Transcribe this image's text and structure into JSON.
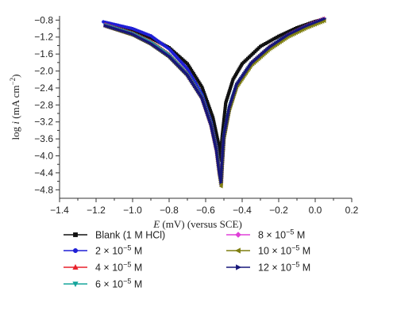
{
  "chart_data": {
    "type": "line",
    "title": "",
    "xlabel": {
      "prefix": "E",
      "rest": " (mV) (versus SCE)"
    },
    "ylabel": {
      "prefix": "log ",
      "italic": "i",
      "mid": " (mA cm",
      "sup": "−2",
      "suffix": ")"
    },
    "xlim": [
      -1.4,
      0.2
    ],
    "ylim": [
      -5.0,
      -0.7
    ],
    "xticks": [
      -1.4,
      -1.2,
      -1.0,
      -0.8,
      -0.6,
      -0.4,
      -0.2,
      0.0,
      0.2
    ],
    "xtick_labels": [
      "−1.4",
      "−1.2",
      "−1.0",
      "−0.8",
      "−0.6",
      "−0.4",
      "−0.2",
      "0.0",
      "0.2"
    ],
    "yticks": [
      -0.8,
      -1.2,
      -1.6,
      -2.0,
      -2.4,
      -2.8,
      -3.2,
      -3.6,
      -4.0,
      -4.4,
      -4.8
    ],
    "ytick_labels": [
      "−0.8",
      "−1.2",
      "−1.6",
      "−2.0",
      "−2.4",
      "−2.8",
      "−3.2",
      "−3.6",
      "−4.0",
      "−4.4",
      "−4.8"
    ],
    "grid": false,
    "legend_position": "bottom",
    "series": [
      {
        "name": "Blank (1 M HCl)",
        "label": {
          "main": "Blank (1 M HCl)"
        },
        "color": "#111111",
        "marker": "square",
        "x": [
          -1.15,
          -1.0,
          -0.9,
          -0.8,
          -0.7,
          -0.62,
          -0.56,
          -0.53,
          -0.52,
          -0.51,
          -0.49,
          -0.45,
          -0.4,
          -0.3,
          -0.2,
          -0.1,
          0.0,
          0.05
        ],
        "y": [
          -0.93,
          -1.06,
          -1.22,
          -1.45,
          -1.83,
          -2.38,
          -3.1,
          -3.7,
          -4.1,
          -3.55,
          -2.75,
          -2.2,
          -1.83,
          -1.42,
          -1.18,
          -0.98,
          -0.83,
          -0.78
        ]
      },
      {
        "name": "2 × 10−5 M",
        "label": {
          "main": "2 × 10",
          "sup": "−5",
          "unit": " M"
        },
        "color": "#1f1fd6",
        "marker": "circle",
        "x": [
          -1.16,
          -1.0,
          -0.9,
          -0.8,
          -0.7,
          -0.62,
          -0.57,
          -0.54,
          -0.525,
          -0.515,
          -0.51,
          -0.5,
          -0.47,
          -0.43,
          -0.35,
          -0.25,
          -0.15,
          -0.05,
          0.05
        ],
        "y": [
          -0.84,
          -1.0,
          -1.17,
          -1.48,
          -1.95,
          -2.55,
          -3.2,
          -3.8,
          -4.4,
          -4.7,
          -4.3,
          -3.6,
          -2.9,
          -2.35,
          -1.82,
          -1.45,
          -1.17,
          -0.96,
          -0.78
        ]
      },
      {
        "name": "4 × 10−5 M",
        "label": {
          "main": "4 × 10",
          "sup": "−5",
          "unit": " M"
        },
        "color": "#e8202a",
        "marker": "triangle-up",
        "x": [
          -1.15,
          -1.0,
          -0.9,
          -0.8,
          -0.7,
          -0.62,
          -0.57,
          -0.54,
          -0.525,
          -0.515,
          -0.51,
          -0.5,
          -0.47,
          -0.43,
          -0.35,
          -0.25,
          -0.15,
          -0.05,
          0.05
        ],
        "y": [
          -0.9,
          -1.1,
          -1.3,
          -1.6,
          -2.05,
          -2.6,
          -3.25,
          -3.85,
          -4.35,
          -4.6,
          -4.2,
          -3.55,
          -2.85,
          -2.3,
          -1.8,
          -1.42,
          -1.14,
          -0.93,
          -0.76
        ]
      },
      {
        "name": "6 × 10−5 M",
        "label": {
          "main": "6 × 10",
          "sup": "−5",
          "unit": " M"
        },
        "color": "#16a59c",
        "marker": "triangle-down",
        "x": [
          -1.15,
          -1.0,
          -0.9,
          -0.8,
          -0.7,
          -0.62,
          -0.57,
          -0.54,
          -0.525,
          -0.515,
          -0.51,
          -0.5,
          -0.47,
          -0.43,
          -0.35,
          -0.25,
          -0.15,
          -0.05,
          0.05
        ],
        "y": [
          -0.92,
          -1.12,
          -1.33,
          -1.63,
          -2.08,
          -2.62,
          -3.27,
          -3.87,
          -4.38,
          -4.65,
          -4.22,
          -3.55,
          -2.85,
          -2.32,
          -1.82,
          -1.44,
          -1.16,
          -0.95,
          -0.78
        ]
      },
      {
        "name": "8 × 10−5 M",
        "label": {
          "main": "8 × 10",
          "sup": "−5",
          "unit": " M"
        },
        "color": "#e040d8",
        "marker": "diamond",
        "x": [
          -1.15,
          -1.0,
          -0.9,
          -0.8,
          -0.7,
          -0.62,
          -0.57,
          -0.54,
          -0.525,
          -0.515,
          -0.51,
          -0.5,
          -0.47,
          -0.43,
          -0.35,
          -0.25,
          -0.15,
          -0.05,
          0.05
        ],
        "y": [
          -0.94,
          -1.14,
          -1.36,
          -1.66,
          -2.1,
          -2.64,
          -3.28,
          -3.88,
          -4.4,
          -4.68,
          -4.25,
          -3.58,
          -2.88,
          -2.34,
          -1.83,
          -1.45,
          -1.16,
          -0.95,
          -0.77
        ]
      },
      {
        "name": "10 × 10−5 M",
        "label": {
          "main": "10 × 10",
          "sup": "−5",
          "unit": " M"
        },
        "color": "#7f7f10",
        "marker": "triangle-left",
        "x": [
          -1.15,
          -1.0,
          -0.9,
          -0.8,
          -0.7,
          -0.62,
          -0.57,
          -0.54,
          -0.525,
          -0.515,
          -0.51,
          -0.5,
          -0.47,
          -0.43,
          -0.35,
          -0.25,
          -0.15,
          -0.05,
          0.05
        ],
        "y": [
          -0.95,
          -1.16,
          -1.38,
          -1.68,
          -2.12,
          -2.66,
          -3.3,
          -3.9,
          -4.45,
          -4.72,
          -4.28,
          -3.6,
          -2.92,
          -2.38,
          -1.87,
          -1.49,
          -1.2,
          -0.99,
          -0.82
        ]
      },
      {
        "name": "12 × 10−5 M",
        "label": {
          "main": "12 × 10",
          "sup": "−5",
          "unit": " M"
        },
        "color": "#17177a",
        "marker": "triangle-right",
        "x": [
          -1.15,
          -1.0,
          -0.9,
          -0.8,
          -0.7,
          -0.62,
          -0.57,
          -0.54,
          -0.525,
          -0.515,
          -0.51,
          -0.5,
          -0.47,
          -0.43,
          -0.35,
          -0.25,
          -0.15,
          -0.05,
          0.05
        ],
        "y": [
          -0.93,
          -1.13,
          -1.35,
          -1.65,
          -2.09,
          -2.63,
          -3.27,
          -3.87,
          -4.38,
          -4.62,
          -4.2,
          -3.54,
          -2.86,
          -2.32,
          -1.82,
          -1.44,
          -1.15,
          -0.94,
          -0.77
        ]
      }
    ]
  }
}
